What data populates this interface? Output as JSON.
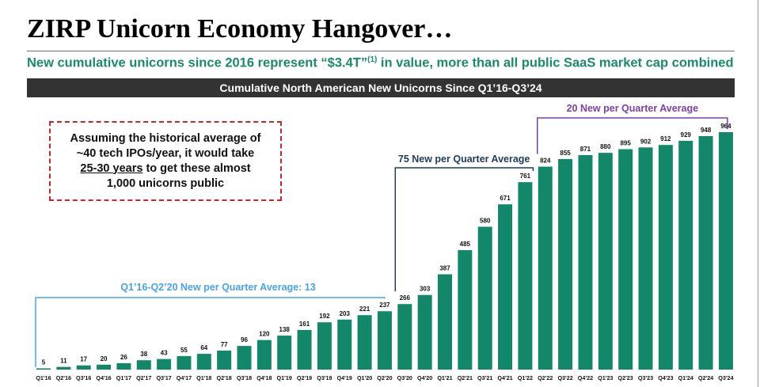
{
  "header": {
    "title": "ZIRP Unicorn Economy Hangover…",
    "subtitle_main": "New cumulative unicorns since 2016 represent “$3.4T”",
    "subtitle_sup": "(1)",
    "subtitle_rest": " in value, more than all public SaaS market cap combined"
  },
  "callout": {
    "line1": "Assuming the historical average of",
    "line2": "~40 tech IPOs/year, it would take",
    "line3_underlined": "25-30 years",
    "line3_rest": " to get these almost",
    "line4": "1,000 unicorns public"
  },
  "colors": {
    "bar": "#13876a",
    "subtitle": "#1b8a6b",
    "banner_bg": "#333333",
    "callout_border": "#c0282d",
    "period1": "#4aa3e8",
    "period2": "#1f3b5c",
    "period3": "#7b3fa6"
  },
  "chart_data": {
    "type": "bar",
    "title": "Cumulative North American New Unicorns Since Q1’16-Q3’24",
    "xlabel": "",
    "ylabel": "",
    "ylim": [
      0,
      1000
    ],
    "categories": [
      "Q1'16",
      "Q2'16",
      "Q3'16",
      "Q4'16",
      "Q1'17",
      "Q2'17",
      "Q3'17",
      "Q4'17",
      "Q1'18",
      "Q2'18",
      "Q3'18",
      "Q4'18",
      "Q1'19",
      "Q2'19",
      "Q3'19",
      "Q4'19",
      "Q1'20",
      "Q2'20",
      "Q3'20",
      "Q4'20",
      "Q1'21",
      "Q2'21",
      "Q3'21",
      "Q4'21",
      "Q1'22",
      "Q2'22",
      "Q3'22",
      "Q4'22",
      "Q1'23",
      "Q2'23",
      "Q3'23",
      "Q4'23",
      "Q1'24",
      "Q2'24",
      "Q3'24"
    ],
    "values": [
      5,
      11,
      17,
      20,
      26,
      38,
      43,
      55,
      64,
      77,
      96,
      120,
      138,
      161,
      192,
      203,
      221,
      237,
      266,
      303,
      387,
      485,
      580,
      671,
      761,
      824,
      855,
      871,
      880,
      895,
      902,
      912,
      929,
      948,
      964
    ],
    "annotations": [
      {
        "text": "Q1’16-Q2’20 New per Quarter Average: 13",
        "from": "Q1'16",
        "to": "Q2'20",
        "color": "#4aa3e8"
      },
      {
        "text": "75 New per Quarter Average",
        "from": "Q3'20",
        "to": "Q1'22",
        "color": "#1f3b5c"
      },
      {
        "text": "20 New per Quarter Average",
        "from": "Q2'22",
        "to": "Q3'24",
        "color": "#7b3fa6"
      }
    ]
  }
}
